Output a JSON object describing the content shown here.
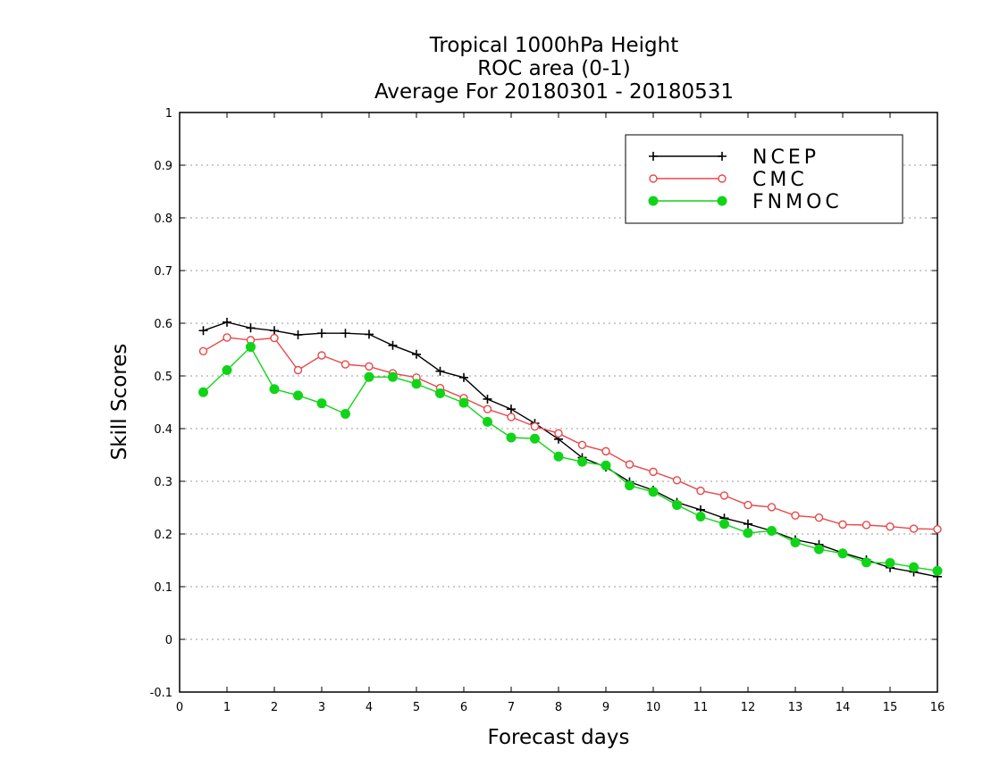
{
  "chart_data": {
    "type": "line",
    "title": [
      "Tropical 1000hPa Height",
      "ROC area (0-1)",
      "Average For 20180301 - 20180531"
    ],
    "xlabel": "Forecast days",
    "ylabel": "Skill Scores",
    "xlim": [
      0,
      16
    ],
    "ylim": [
      -0.1,
      1
    ],
    "xticks": [
      "0",
      "1",
      "2",
      "3",
      "4",
      "5",
      "6",
      "7",
      "8",
      "9",
      "10",
      "11",
      "12",
      "13",
      "14",
      "15",
      "16"
    ],
    "yticks": [
      "-0.1",
      "0",
      "0.1",
      "0.2",
      "0.3",
      "0.4",
      "0.5",
      "0.6",
      "0.7",
      "0.8",
      "0.9",
      "1"
    ],
    "grid": "dotted-horizontal",
    "legend_position": "top-right",
    "x": [
      0.5,
      1,
      1.5,
      2,
      2.5,
      3,
      3.5,
      4,
      4.5,
      5,
      5.5,
      6,
      6.5,
      7,
      7.5,
      8,
      8.5,
      9,
      9.5,
      10,
      10.5,
      11,
      11.5,
      12,
      12.5,
      13,
      13.5,
      14,
      14.5,
      15,
      15.5,
      16
    ],
    "series": [
      {
        "name": "NCEP",
        "color": "#000000",
        "marker": "plus",
        "values": [
          0.586,
          0.602,
          0.591,
          0.586,
          0.578,
          0.581,
          0.581,
          0.579,
          0.558,
          0.541,
          0.509,
          0.497,
          0.456,
          0.437,
          0.41,
          0.38,
          0.345,
          0.327,
          0.299,
          0.283,
          0.26,
          0.246,
          0.23,
          0.219,
          0.206,
          0.189,
          0.18,
          0.164,
          0.151,
          0.136,
          0.128,
          0.119
        ]
      },
      {
        "name": "CMC",
        "color": "#e8474a",
        "marker": "open-circle",
        "values": [
          0.547,
          0.573,
          0.568,
          0.572,
          0.511,
          0.539,
          0.522,
          0.518,
          0.505,
          0.497,
          0.477,
          0.458,
          0.437,
          0.422,
          0.404,
          0.391,
          0.369,
          0.357,
          0.332,
          0.318,
          0.302,
          0.282,
          0.273,
          0.255,
          0.251,
          0.235,
          0.231,
          0.218,
          0.217,
          0.214,
          0.21,
          0.209
        ]
      },
      {
        "name": "FNMOC",
        "color": "#11d419",
        "marker": "filled-circle",
        "values": [
          0.469,
          0.511,
          0.555,
          0.475,
          0.463,
          0.448,
          0.428,
          0.498,
          0.498,
          0.485,
          0.467,
          0.449,
          0.413,
          0.383,
          0.381,
          0.347,
          0.337,
          0.33,
          0.292,
          0.28,
          0.255,
          0.233,
          0.219,
          0.202,
          0.206,
          0.184,
          0.171,
          0.163,
          0.146,
          0.145,
          0.137,
          0.13
        ]
      }
    ]
  }
}
